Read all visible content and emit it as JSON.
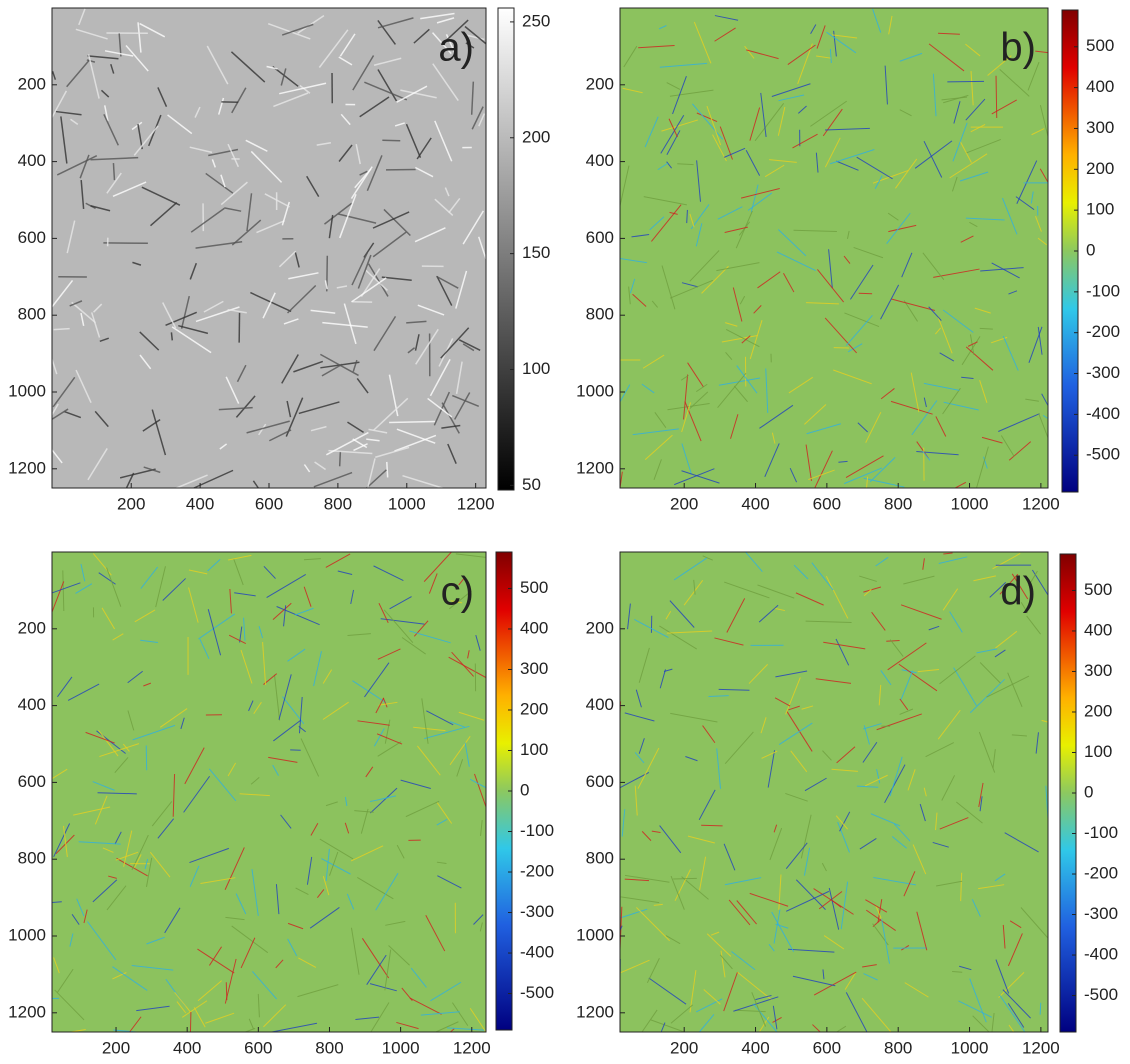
{
  "chart_data": [
    {
      "type": "heatmap",
      "annotation": "a)",
      "colormap": "gray",
      "xlim": [
        -30,
        1230
      ],
      "xticks": [
        200,
        400,
        600,
        800,
        1000,
        1200
      ],
      "ylim": [
        0,
        1250
      ],
      "yticks": [
        200,
        400,
        600,
        800,
        1000,
        1200
      ],
      "clim": [
        48,
        256
      ],
      "cticks": [
        50,
        100,
        150,
        200,
        250
      ]
    },
    {
      "type": "heatmap",
      "annotation": "b)",
      "colormap": "jet",
      "xlim": [
        20,
        1220
      ],
      "xticks": [
        200,
        400,
        600,
        800,
        1000,
        1200
      ],
      "ylim": [
        0,
        1250
      ],
      "yticks": [
        200,
        400,
        600,
        800,
        1000,
        1200
      ],
      "clim": [
        -590,
        590
      ],
      "cticks": [
        -500,
        -400,
        -300,
        -200,
        -100,
        0,
        100,
        200,
        300,
        400,
        500
      ]
    },
    {
      "type": "heatmap",
      "annotation": "c)",
      "colormap": "jet",
      "xlim": [
        20,
        1240
      ],
      "xticks": [
        200,
        400,
        600,
        800,
        1000,
        1200
      ],
      "ylim": [
        0,
        1250
      ],
      "yticks": [
        200,
        400,
        600,
        800,
        1000,
        1200
      ],
      "clim": [
        -590,
        590
      ],
      "cticks": [
        -500,
        -400,
        -300,
        -200,
        -100,
        0,
        100,
        200,
        300,
        400,
        500
      ]
    },
    {
      "type": "heatmap",
      "annotation": "d)",
      "colormap": "jet",
      "xlim": [
        20,
        1220
      ],
      "xticks": [
        200,
        400,
        600,
        800,
        1000,
        1200
      ],
      "ylim": [
        0,
        1250
      ],
      "yticks": [
        200,
        400,
        600,
        800,
        1000,
        1200
      ],
      "clim": [
        -590,
        590
      ],
      "cticks": [
        -500,
        -400,
        -300,
        -200,
        -100,
        0,
        100,
        200,
        300,
        400,
        500
      ]
    }
  ]
}
